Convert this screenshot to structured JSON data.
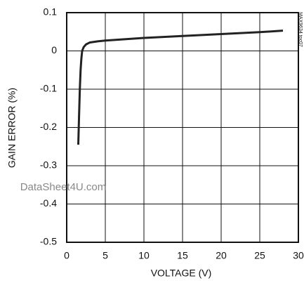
{
  "chart_data": {
    "type": "line",
    "x_label": "VOLTAGE (V)",
    "y_label": "GAIN ERROR (%)",
    "figure_id": "MAX9634 toc07",
    "watermark": "DataSheet4U.com",
    "x": [
      1.5,
      1.6,
      1.7,
      1.8,
      1.9,
      2.0,
      2.2,
      2.5,
      3,
      4,
      5,
      10,
      15,
      20,
      25,
      28
    ],
    "series": [
      {
        "color": "#222222",
        "values": [
          -0.245,
          -0.17,
          -0.1,
          -0.05,
          -0.02,
          0.0,
          0.01,
          0.017,
          0.022,
          0.025,
          0.027,
          0.034,
          0.039,
          0.044,
          0.049,
          0.053
        ]
      }
    ],
    "xlim": [
      0,
      30
    ],
    "ylim": [
      -0.5,
      0.1
    ],
    "xticks": [
      0,
      5,
      10,
      15,
      20,
      25,
      30
    ],
    "yticks": [
      0.1,
      0,
      -0.1,
      -0.2,
      -0.3,
      -0.4,
      -0.5
    ],
    "grid": true
  }
}
